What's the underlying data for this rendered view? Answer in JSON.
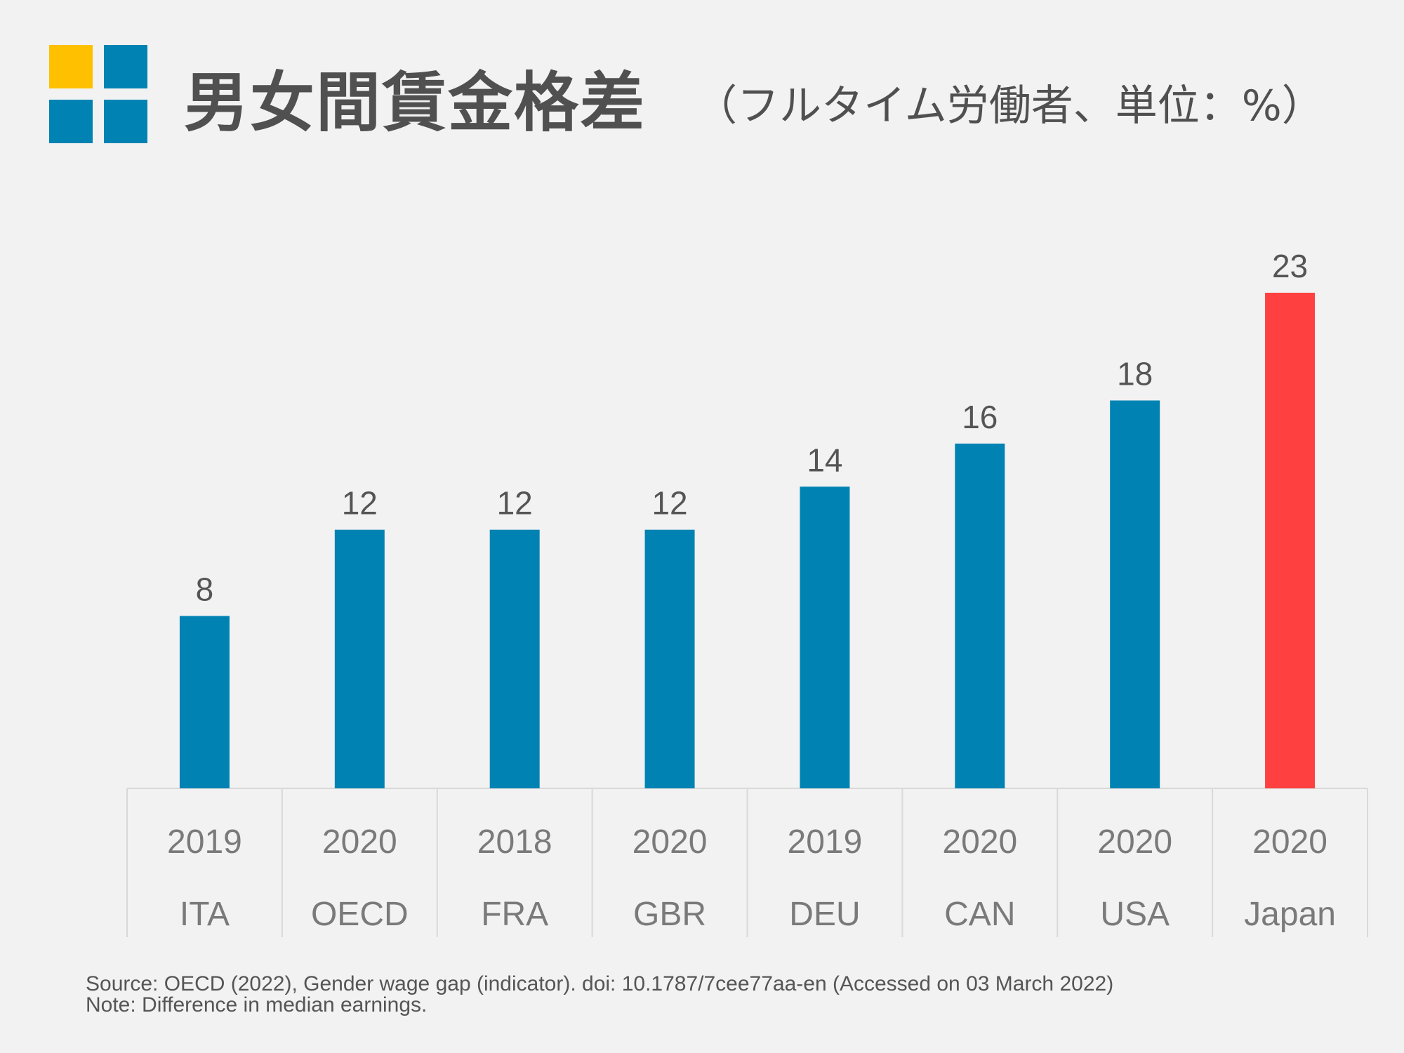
{
  "header": {
    "title": "男女間賃金格差",
    "subtitle": "（フルタイム労働者、単位：%）",
    "logo_colors": [
      "#ffc000",
      "#0083b3",
      "#0083b3",
      "#0083b3"
    ]
  },
  "chart_data": {
    "type": "bar",
    "title": "男女間賃金格差（フルタイム労働者、単位：%）",
    "categories": [
      "ITA",
      "OECD",
      "FRA",
      "GBR",
      "DEU",
      "CAN",
      "USA",
      "Japan"
    ],
    "years": [
      "2019",
      "2020",
      "2018",
      "2020",
      "2019",
      "2020",
      "2020",
      "2020"
    ],
    "values": [
      8,
      12,
      12,
      12,
      14,
      16,
      18,
      23
    ],
    "value_labels": [
      "8",
      "12",
      "12",
      "12",
      "14",
      "16",
      "18",
      "23"
    ],
    "bar_colors": [
      "#0083b3",
      "#0083b3",
      "#0083b3",
      "#0083b3",
      "#0083b3",
      "#0083b3",
      "#0083b3",
      "#ff4040"
    ],
    "xlabel": "",
    "ylabel": "",
    "ylim": [
      0,
      23
    ],
    "grid": false,
    "legend": "none"
  },
  "footer": {
    "source": "Source: OECD (2022), Gender wage gap (indicator). doi: 10.1787/7cee77aa-en (Accessed on 03 March 2022)",
    "note": "Note: Difference in median earnings."
  }
}
